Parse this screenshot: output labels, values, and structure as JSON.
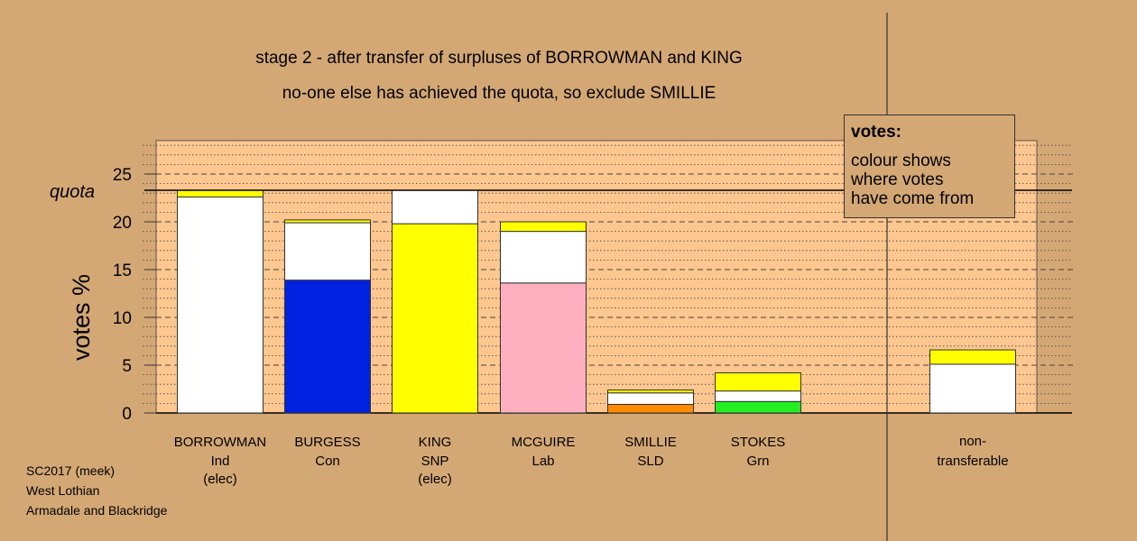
{
  "header": {
    "title": "stage 2 - after transfer of surpluses of BORROWMAN and KING",
    "subtitle": "no-one else has achieved the quota, so exclude SMILLIE"
  },
  "footer": {
    "line1": "SC2017 (meek)",
    "line2": "West Lothian",
    "line3": "Armadale and Blackridge"
  },
  "legend": {
    "title": "votes:",
    "lines": [
      "colour shows",
      "where votes",
      "have come from"
    ]
  },
  "colors": {
    "background": "#d4a874",
    "plot_bg": "#fdc78f",
    "Ind": "#ffffff",
    "Con": "#0022e0",
    "SNP": "#ffff00",
    "Lab": "#ffb0c0",
    "SLD": "#ff8c00",
    "Grn": "#22ee22"
  },
  "chart_data": {
    "type": "bar",
    "stacked": true,
    "ylabel": "votes %",
    "ylim": [
      0,
      28.5
    ],
    "yticks": [
      0,
      5,
      10,
      15,
      20,
      25
    ],
    "quota": {
      "label": "quota",
      "value": 23.3
    },
    "grid": true,
    "legend_position": "top-right",
    "categories": [
      {
        "name": "BORROWMAN",
        "party": "Ind",
        "status": "(elec)",
        "segments": [
          {
            "from": "Ind",
            "value": 22.6
          },
          {
            "from": "SNP",
            "value": 0.7
          }
        ]
      },
      {
        "name": "BURGESS",
        "party": "Con",
        "status": "",
        "segments": [
          {
            "from": "Con",
            "value": 13.9
          },
          {
            "from": "Ind",
            "value": 6.0
          },
          {
            "from": "SNP",
            "value": 0.3
          }
        ]
      },
      {
        "name": "KING",
        "party": "SNP",
        "status": "(elec)",
        "segments": [
          {
            "from": "SNP",
            "value": 19.8
          },
          {
            "from": "Ind",
            "value": 3.5
          }
        ]
      },
      {
        "name": "MCGUIRE",
        "party": "Lab",
        "status": "",
        "segments": [
          {
            "from": "Lab",
            "value": 13.6
          },
          {
            "from": "Ind",
            "value": 5.4
          },
          {
            "from": "SNP",
            "value": 1.0
          }
        ]
      },
      {
        "name": "SMILLIE",
        "party": "SLD",
        "status": "",
        "segments": [
          {
            "from": "SLD",
            "value": 0.9
          },
          {
            "from": "Ind",
            "value": 1.2
          },
          {
            "from": "SNP",
            "value": 0.3
          }
        ]
      },
      {
        "name": "STOKES",
        "party": "Grn",
        "status": "",
        "segments": [
          {
            "from": "Grn",
            "value": 1.2
          },
          {
            "from": "Ind",
            "value": 1.1
          },
          {
            "from": "SNP",
            "value": 1.9
          }
        ]
      }
    ],
    "nontransferable": {
      "line1": "non-",
      "line2": "transferable",
      "segments": [
        {
          "from": "Ind",
          "value": 5.1
        },
        {
          "from": "SNP",
          "value": 1.5
        }
      ]
    }
  }
}
